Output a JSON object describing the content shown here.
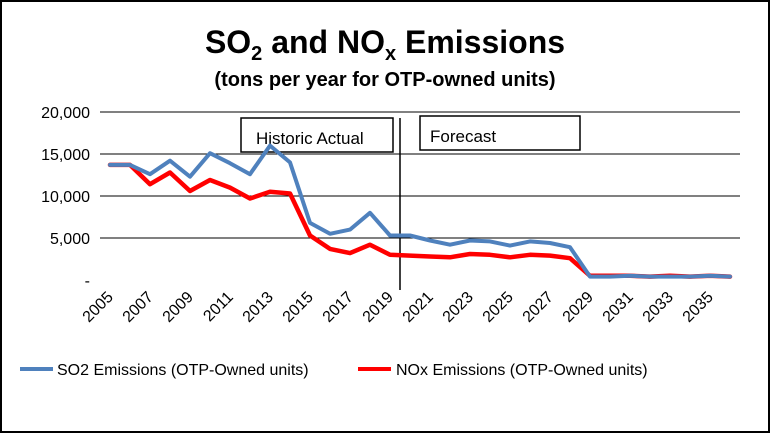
{
  "chart_data": {
    "type": "line",
    "title": {
      "prefix_so": "SO",
      "so_sub": "2",
      "middle": " and NO",
      "nox_sub": "x",
      "suffix": " Emissions"
    },
    "subtitle": "(tons per year for OTP-owned units)",
    "ylim": [
      0,
      20000
    ],
    "y_ticks": [
      {
        "value": 0,
        "label": "-"
      },
      {
        "value": 5000,
        "label": "5,000"
      },
      {
        "value": 10000,
        "label": "10,000"
      },
      {
        "value": 15000,
        "label": "15,000"
      },
      {
        "value": 20000,
        "label": "20,000"
      }
    ],
    "x": [
      2005,
      2006,
      2007,
      2008,
      2009,
      2010,
      2011,
      2012,
      2013,
      2014,
      2015,
      2016,
      2017,
      2018,
      2019,
      2020,
      2021,
      2022,
      2023,
      2024,
      2025,
      2026,
      2027,
      2028,
      2029,
      2030,
      2031,
      2032,
      2033,
      2034,
      2035,
      2036
    ],
    "x_tick_labels": [
      "2005",
      "2007",
      "2009",
      "2011",
      "2013",
      "2015",
      "2017",
      "2019",
      "2021",
      "2023",
      "2025",
      "2027",
      "2029",
      "2031",
      "2033",
      "2035"
    ],
    "grid": true,
    "legend_position": "bottom",
    "series": [
      {
        "name": "SO2 Emissions (OTP-Owned units)",
        "color": "#4F81BD",
        "values": [
          13700,
          13700,
          12600,
          14200,
          12300,
          15100,
          13900,
          12600,
          16000,
          14000,
          6800,
          5500,
          6000,
          8000,
          5300,
          5300,
          4700,
          4200,
          4700,
          4600,
          4100,
          4600,
          4400,
          3900,
          400,
          400,
          500,
          400,
          400,
          400,
          500,
          400
        ]
      },
      {
        "name": "NOx Emissions (OTP-Owned units)",
        "color": "#FF0000",
        "values": [
          13700,
          13700,
          11400,
          12800,
          10600,
          11900,
          11000,
          9700,
          10500,
          10300,
          5300,
          3700,
          3200,
          4200,
          3000,
          2900,
          2800,
          2700,
          3100,
          3000,
          2700,
          3000,
          2900,
          2600,
          500,
          500,
          500,
          400,
          500,
          400,
          500,
          400
        ]
      }
    ],
    "annotations": {
      "historic": "Historic Actual",
      "forecast": "Forecast",
      "divider_year": 2019.5
    }
  }
}
